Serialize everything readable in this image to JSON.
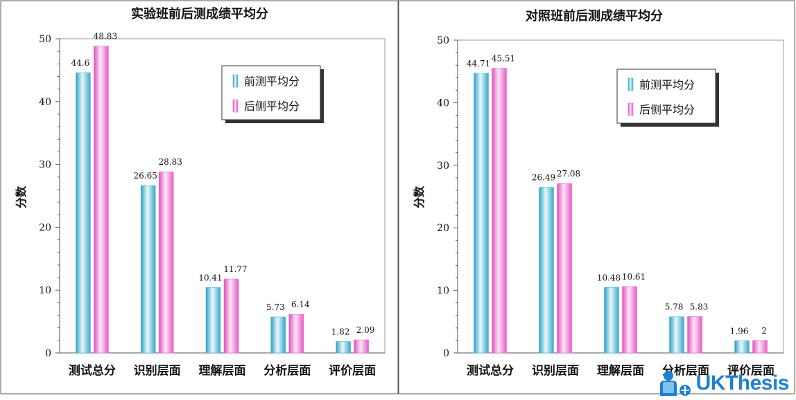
{
  "chart_data": [
    {
      "type": "bar",
      "title": "实验班前后测成绩平均分",
      "ylabel": "分数",
      "xlabel": "",
      "ylim": [
        0,
        50
      ],
      "yticks": [
        0,
        10,
        20,
        30,
        40,
        50
      ],
      "grid": false,
      "legend_position": "top-right",
      "categories": [
        "测试总分",
        "识别层面",
        "理解层面",
        "分析层面",
        "评价层面"
      ],
      "series": [
        {
          "name": "前测平均分",
          "values": [
            44.6,
            26.65,
            10.41,
            5.73,
            1.82
          ],
          "labels": [
            "44.6",
            "26.65",
            "10.41",
            "5.73",
            "1.82"
          ],
          "color": "#4fb9d6"
        },
        {
          "name": "后侧平均分",
          "values": [
            48.83,
            28.83,
            11.77,
            6.14,
            2.09
          ],
          "labels": [
            "48.83",
            "28.83",
            "11.77",
            "6.14",
            "2.09"
          ],
          "color": "#ec6fd0"
        }
      ]
    },
    {
      "type": "bar",
      "title": "对照班前后测成绩平均分",
      "ylabel": "分数",
      "xlabel": "",
      "ylim": [
        0,
        50
      ],
      "yticks": [
        0,
        10,
        20,
        30,
        40,
        50
      ],
      "grid": false,
      "legend_position": "top-right",
      "categories": [
        "测试总分",
        "识别层面",
        "理解层面",
        "分析层面",
        "评价层面"
      ],
      "series": [
        {
          "name": "前测平均分",
          "values": [
            44.71,
            26.49,
            10.48,
            5.78,
            1.96
          ],
          "labels": [
            "44.71",
            "26.49",
            "10.48",
            "5.78",
            "1.96"
          ],
          "color": "#4fb9d6"
        },
        {
          "name": "后侧平均分",
          "values": [
            45.51,
            27.08,
            10.61,
            5.83,
            2
          ],
          "labels": [
            "45.51",
            "27.08",
            "10.61",
            "5.83",
            "2"
          ],
          "color": "#ec6fd0"
        }
      ]
    }
  ],
  "watermark": {
    "text": "UKThesis"
  }
}
